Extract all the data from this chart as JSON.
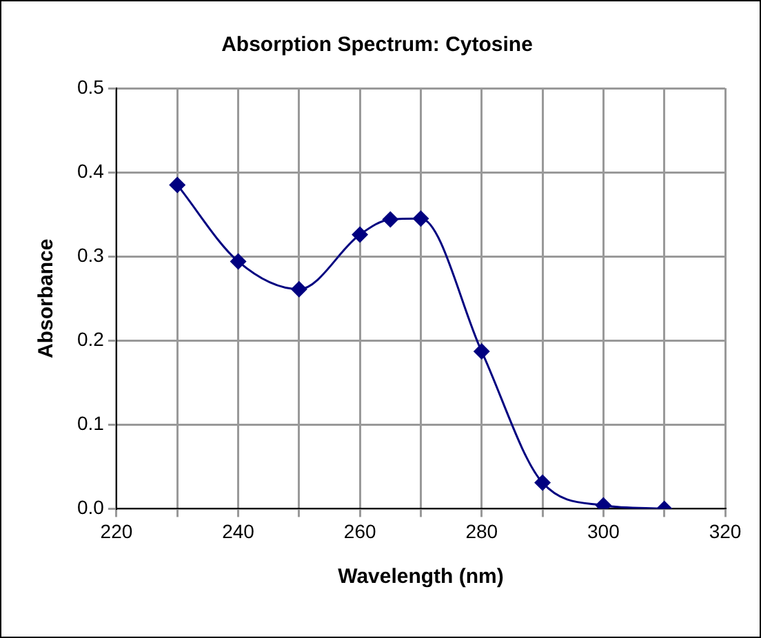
{
  "chart_data": {
    "type": "line",
    "title": "Absorption Spectrum: Cytosine",
    "xlabel": "Wavelength (nm)",
    "ylabel": "Absorbance",
    "x": [
      230,
      240,
      250,
      260,
      265,
      270,
      280,
      290,
      300,
      310
    ],
    "series": [
      {
        "color": "#000080",
        "values": [
          0.385,
          0.294,
          0.261,
          0.326,
          0.344,
          0.345,
          0.187,
          0.031,
          0.004,
          0.0
        ]
      }
    ],
    "xlim": [
      220,
      320
    ],
    "xticks": [
      220,
      {
        "value": 230,
        "label": null
      },
      240,
      {
        "value": 250,
        "label": null
      },
      260,
      {
        "value": 270,
        "label": null
      },
      280,
      {
        "value": 290,
        "label": null
      },
      300,
      {
        "value": 310,
        "label": null
      },
      320
    ],
    "ylim": [
      0,
      0.5
    ],
    "yticks": [
      {
        "value": 0,
        "label": "0.0"
      },
      0.1,
      0.2,
      0.3,
      0.4,
      0.5
    ],
    "grid": true,
    "legend": false,
    "marker": "diamond",
    "line_style": "solid"
  }
}
